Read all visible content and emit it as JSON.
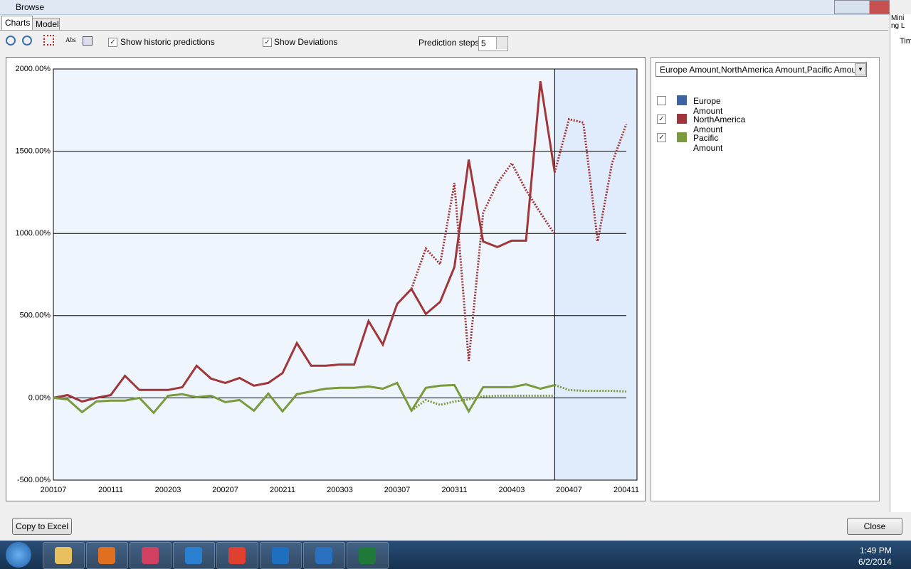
{
  "window": {
    "title": "Browse",
    "side_panel": [
      "Mini",
      "ng L",
      "Tim"
    ]
  },
  "tabs": [
    "Charts",
    "Model"
  ],
  "toolbar": {
    "abs": "Abs",
    "show_historic": {
      "label": "Show historic predictions",
      "checked": true
    },
    "show_deviations": {
      "label": "Show Deviations",
      "checked": true
    },
    "prediction_steps_label": "Prediction steps",
    "prediction_steps": 5
  },
  "series_selector": "Europe Amount,NorthAmerica Amount,Pacific Amount",
  "buttons": {
    "copy": "Copy to Excel",
    "close": "Close"
  },
  "taskbar": {
    "time": "1:49 PM",
    "date": "6/2/2014"
  },
  "chart_data": {
    "type": "line",
    "categories": [
      "200107",
      null,
      null,
      null,
      "200111",
      null,
      null,
      null,
      "200203",
      null,
      null,
      null,
      "200207",
      null,
      null,
      null,
      "200211",
      null,
      null,
      null,
      "200303",
      null,
      null,
      null,
      "200307",
      null,
      null,
      null,
      "200311",
      null,
      null,
      null,
      "200403",
      null,
      null,
      null,
      "200407",
      null,
      null,
      null,
      "200411"
    ],
    "ylim": [
      -500,
      2000
    ],
    "yticks": [
      {
        "value": -500,
        "label": "-500.00%"
      },
      {
        "value": 0,
        "label": "0.00%"
      },
      {
        "value": 500,
        "label": "500.00%"
      },
      {
        "value": 1000,
        "label": "1000.00%"
      },
      {
        "value": 1500,
        "label": "1500.00%"
      },
      {
        "value": 2000,
        "label": "2000.00%"
      }
    ],
    "grid": true,
    "series": [
      {
        "name": "Europe Amount",
        "color": "#3c64a0",
        "checked": false
      },
      {
        "name": "NorthAmerica Amount",
        "color": "#a0363a",
        "checked": true,
        "values": [
          0,
          17,
          -22,
          0,
          17,
          134,
          48,
          48,
          48,
          65,
          195,
          117,
          91,
          121,
          74,
          91,
          151,
          333,
          195,
          195,
          203,
          203,
          467,
          324,
          571,
          662,
          510,
          584,
          796,
          1449,
          951,
          917,
          956,
          956,
          1925,
          1371,
          null,
          null,
          null,
          null,
          null
        ],
        "forecast": [
          null,
          null,
          null,
          null,
          null,
          null,
          null,
          null,
          null,
          null,
          null,
          null,
          null,
          null,
          null,
          null,
          null,
          null,
          null,
          null,
          null,
          null,
          null,
          null,
          null,
          null,
          null,
          null,
          null,
          null,
          null,
          null,
          null,
          null,
          null,
          1371,
          1695,
          1674,
          951,
          1427,
          1665
        ],
        "historic": [
          null,
          null,
          null,
          null,
          null,
          null,
          null,
          null,
          null,
          null,
          null,
          null,
          null,
          null,
          null,
          null,
          null,
          null,
          null,
          null,
          null,
          null,
          null,
          null,
          null,
          662,
          908,
          813,
          1306,
          225,
          1125,
          1306,
          1427,
          1263,
          1125,
          995,
          null,
          null,
          null,
          null,
          null
        ]
      },
      {
        "name": "Pacific Amount",
        "color": "#7a9a3c",
        "checked": true,
        "values": [
          0,
          -9,
          -87,
          -22,
          -17,
          -17,
          0,
          -91,
          13,
          22,
          4,
          13,
          -26,
          -13,
          -78,
          26,
          -82,
          22,
          39,
          56,
          61,
          61,
          69,
          56,
          91,
          -78,
          61,
          74,
          78,
          -82,
          65,
          65,
          65,
          82,
          56,
          78,
          null,
          null,
          null,
          null,
          null
        ],
        "forecast": [
          null,
          null,
          null,
          null,
          null,
          null,
          null,
          null,
          null,
          null,
          null,
          null,
          null,
          null,
          null,
          null,
          null,
          null,
          null,
          null,
          null,
          null,
          null,
          null,
          null,
          null,
          null,
          null,
          null,
          null,
          null,
          null,
          null,
          null,
          null,
          78,
          48,
          43,
          43,
          43,
          39
        ],
        "historic": [
          null,
          null,
          null,
          null,
          null,
          null,
          null,
          null,
          null,
          null,
          null,
          null,
          null,
          null,
          null,
          null,
          null,
          null,
          null,
          null,
          null,
          null,
          null,
          null,
          null,
          -78,
          -13,
          -43,
          -22,
          -9,
          9,
          13,
          13,
          13,
          13,
          13,
          null,
          null,
          null,
          null,
          null
        ]
      }
    ]
  }
}
